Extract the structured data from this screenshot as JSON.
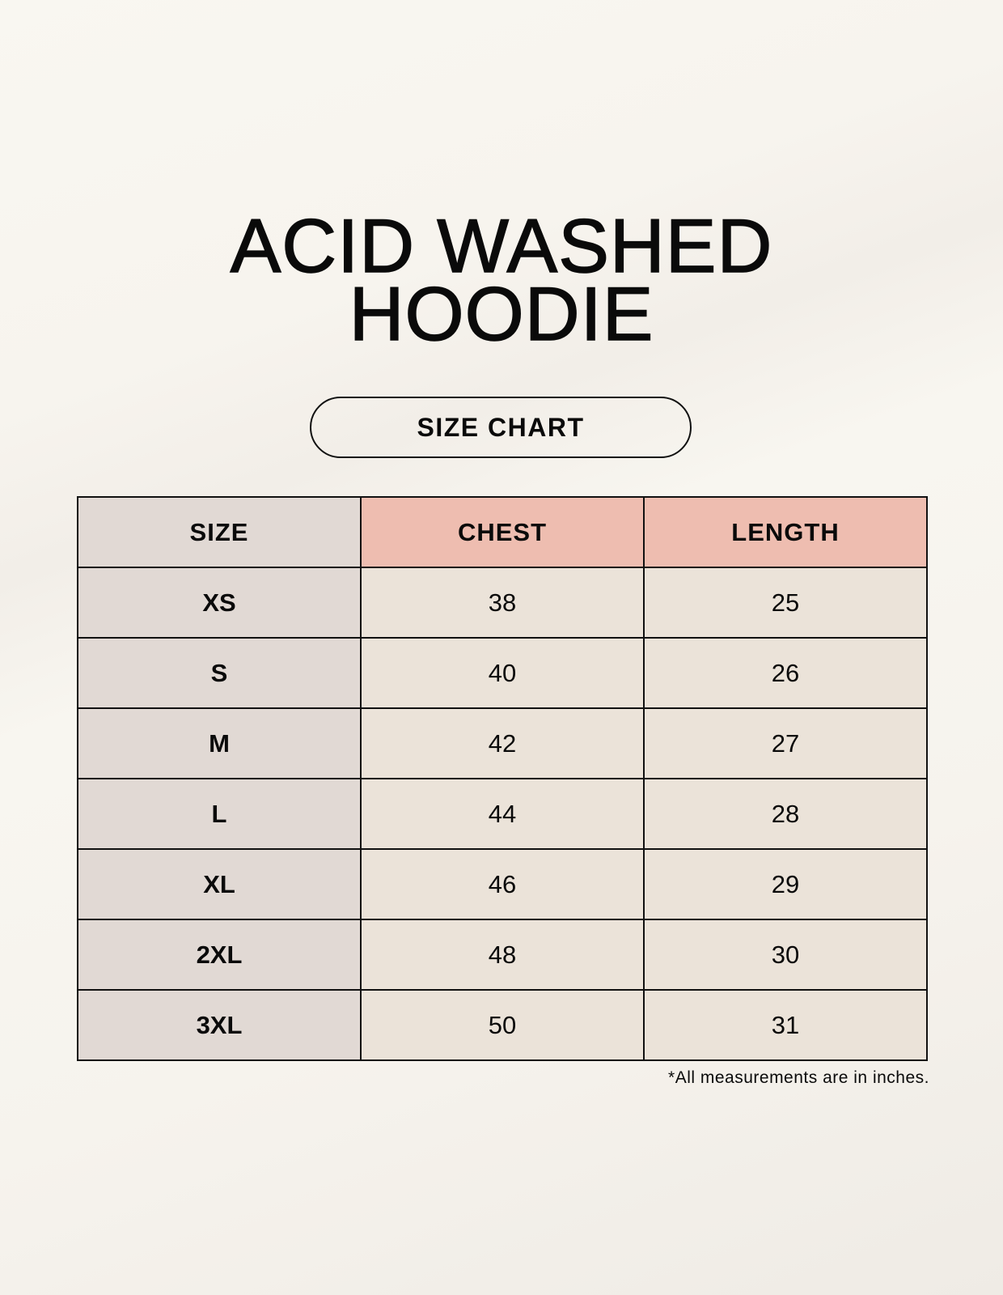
{
  "title": {
    "line1": "ACID WASHED",
    "line2": "HOODIE"
  },
  "subtitle": "SIZE CHART",
  "table": {
    "headers": [
      "SIZE",
      "CHEST",
      "LENGTH"
    ],
    "rows": [
      [
        "XS",
        "38",
        "25"
      ],
      [
        "S",
        "40",
        "26"
      ],
      [
        "M",
        "42",
        "27"
      ],
      [
        "L",
        "44",
        "28"
      ],
      [
        "XL",
        "46",
        "29"
      ],
      [
        "2XL",
        "48",
        "30"
      ],
      [
        "3XL",
        "50",
        "31"
      ]
    ]
  },
  "footnote": "*All measurements are in inches.",
  "colors": {
    "size_column": "#e1d9d4",
    "header_accent": "#eebdb0",
    "value_cells": "#ebe3d9"
  }
}
